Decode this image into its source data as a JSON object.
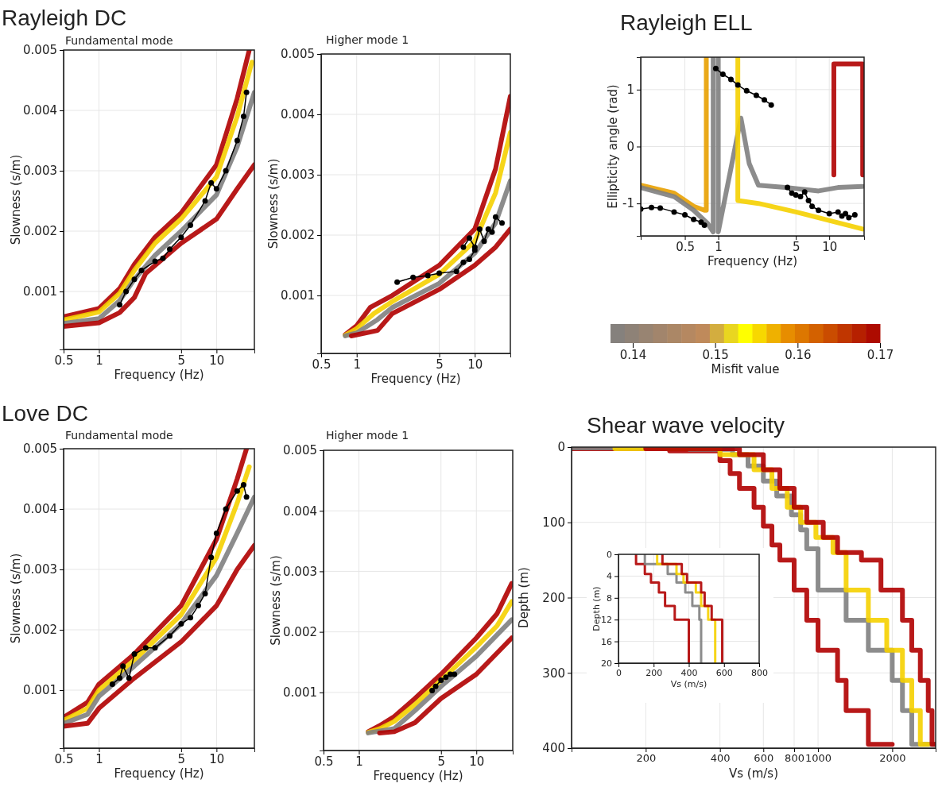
{
  "chart_data": [
    {
      "type": "line",
      "title": "Rayleigh DC",
      "subtitle": "Fundamental mode",
      "xlabel": "Frequency (Hz)",
      "ylabel": "Slowness (s/m)",
      "log": "x",
      "grid": true,
      "xlim": [
        0.5,
        21
      ],
      "ylim": [
        4e-05,
        0.005
      ],
      "xticks": [
        0.5,
        1,
        5,
        10
      ],
      "yticks": [
        0.001,
        0.002,
        0.003,
        0.004,
        0.005
      ],
      "series": [
        {
          "color": "#b00000",
          "marker": "none",
          "x": [
            0.5,
            1,
            1.5,
            2,
            3,
            5,
            10,
            15,
            19
          ],
          "values": [
            0.00058,
            0.00072,
            0.00105,
            0.00145,
            0.0019,
            0.0023,
            0.0031,
            0.0042,
            0.005
          ]
        },
        {
          "color": "#f5d000",
          "marker": "none",
          "x": [
            0.5,
            1,
            1.5,
            2,
            3,
            5,
            10,
            15,
            20
          ],
          "values": [
            0.00053,
            0.00066,
            0.00097,
            0.00135,
            0.0018,
            0.0022,
            0.0029,
            0.0039,
            0.0048
          ]
        },
        {
          "color": "#808080",
          "marker": "none",
          "x": [
            0.5,
            1,
            1.5,
            2,
            3,
            5,
            10,
            15,
            21
          ],
          "values": [
            0.00047,
            0.00055,
            0.00085,
            0.0012,
            0.0016,
            0.002,
            0.0026,
            0.0034,
            0.0043
          ]
        },
        {
          "color": "#b00000",
          "marker": "none",
          "x": [
            0.5,
            1,
            1.5,
            2,
            2.5,
            5,
            10,
            15,
            21
          ],
          "values": [
            0.00042,
            0.00048,
            0.00065,
            0.0009,
            0.0013,
            0.0018,
            0.0022,
            0.0027,
            0.0031
          ]
        },
        {
          "color": "#000000",
          "marker": "circle",
          "x": [
            1.5,
            1.7,
            2,
            2.3,
            3,
            3.5,
            4,
            5,
            6,
            8,
            9,
            10,
            12,
            15,
            17,
            18
          ],
          "values": [
            0.00078,
            0.001,
            0.0012,
            0.00135,
            0.0015,
            0.00155,
            0.0017,
            0.0019,
            0.0021,
            0.0025,
            0.0028,
            0.0027,
            0.003,
            0.0035,
            0.0039,
            0.0043
          ]
        }
      ]
    },
    {
      "type": "line",
      "subtitle": "Higher mode 1",
      "xlabel": "Frequency (Hz)",
      "ylabel": "Slowness (s/m)",
      "log": "x",
      "grid": true,
      "xlim": [
        0.5,
        20
      ],
      "ylim": [
        4e-05,
        0.005
      ],
      "xticks": [
        0.5,
        1,
        5,
        10
      ],
      "yticks": [
        0.001,
        0.002,
        0.003,
        0.004,
        0.005
      ],
      "series": [
        {
          "color": "#b00000",
          "marker": "none",
          "x": [
            0.8,
            1,
            1.3,
            2,
            5,
            10,
            15,
            20
          ],
          "values": [
            0.00035,
            0.0005,
            0.0008,
            0.001,
            0.0015,
            0.0021,
            0.0031,
            0.0043
          ]
        },
        {
          "color": "#f5d000",
          "marker": "none",
          "x": [
            0.8,
            1,
            1.4,
            2,
            5,
            10,
            15,
            20
          ],
          "values": [
            0.00034,
            0.00045,
            0.0007,
            0.0009,
            0.00135,
            0.0019,
            0.0027,
            0.0037
          ]
        },
        {
          "color": "#808080",
          "marker": "none",
          "x": [
            0.8,
            1,
            1.5,
            2,
            5,
            10,
            15,
            20
          ],
          "values": [
            0.00033,
            0.00038,
            0.0006,
            0.0008,
            0.0012,
            0.0017,
            0.0022,
            0.0029
          ]
        },
        {
          "color": "#b00000",
          "marker": "none",
          "x": [
            0.9,
            1.5,
            2,
            5,
            10,
            15,
            20
          ],
          "values": [
            0.00033,
            0.00042,
            0.0007,
            0.0011,
            0.0015,
            0.0018,
            0.0021
          ]
        },
        {
          "color": "#000000",
          "marker": "circle",
          "x": [
            2.2,
            3,
            4,
            5,
            7,
            8,
            9,
            10
          ],
          "values": [
            0.00122,
            0.0013,
            0.00133,
            0.00137,
            0.0014,
            0.00155,
            0.0016,
            0.00175
          ]
        },
        {
          "color": "#000000",
          "marker": "circle",
          "x": [
            8,
            9,
            10,
            11,
            12,
            13,
            14,
            15,
            17
          ],
          "values": [
            0.0018,
            0.00195,
            0.0018,
            0.0021,
            0.0019,
            0.0021,
            0.00205,
            0.0023,
            0.0022
          ]
        }
      ]
    },
    {
      "type": "line",
      "title": "Rayleigh ELL",
      "xlabel": "Frequency (Hz)",
      "ylabel": "Ellipticity angle (rad)",
      "log": "x",
      "grid": true,
      "xlim": [
        0.2,
        20.6
      ],
      "ylim": [
        -1.57,
        1.57
      ],
      "xticks": [
        0.5,
        1,
        5,
        10
      ],
      "yticks": [
        -1,
        0,
        1
      ],
      "clabel": "Misfit value",
      "clim": [
        0.1373,
        0.17
      ],
      "cticks": [
        0.14,
        0.15,
        0.16,
        0.17
      ],
      "series": [
        {
          "color": "#b00000",
          "marker": "none",
          "x": [
            11,
            11,
            14,
            17,
            20,
            20
          ],
          "values": [
            -0.5,
            1.45,
            1.45,
            1.45,
            1.45,
            -0.5
          ]
        },
        {
          "color": "#e8a000",
          "marker": "none",
          "x": [
            0.2,
            0.4,
            0.6,
            0.75,
            0.78,
            0.78
          ],
          "values": [
            -0.68,
            -0.82,
            -1.05,
            -1.12,
            -1.12,
            1.57
          ]
        },
        {
          "color": "#808080",
          "marker": "none",
          "x": [
            0.2,
            0.4,
            0.6,
            0.8,
            0.9,
            0.9
          ],
          "values": [
            -0.72,
            -0.88,
            -1.12,
            -1.35,
            -1.5,
            1.57
          ]
        },
        {
          "color": "#808080",
          "marker": "none",
          "x": [
            1,
            1,
            1.6,
            1.9,
            2.3,
            4,
            8,
            12,
            20
          ],
          "values": [
            1.57,
            -1.5,
            0.5,
            -0.3,
            -0.68,
            -0.72,
            -0.78,
            -0.72,
            -0.7
          ]
        },
        {
          "color": "#f5d000",
          "marker": "none",
          "x": [
            1.5,
            1.5,
            2.3,
            5,
            10,
            20
          ],
          "values": [
            1.57,
            -0.95,
            -1.0,
            -1.15,
            -1.3,
            -1.45
          ]
        },
        {
          "color": "#000000",
          "marker": "circle",
          "x": [
            0.2,
            0.25,
            0.3,
            0.4,
            0.5,
            0.6,
            0.7,
            0.75
          ],
          "values": [
            -1.1,
            -1.07,
            -1.08,
            -1.15,
            -1.2,
            -1.28,
            -1.33,
            -1.38
          ]
        },
        {
          "color": "#000000",
          "marker": "circle",
          "x": [
            0.95,
            1.1,
            1.3,
            1.5,
            1.8,
            2.2,
            2.6,
            3
          ],
          "values": [
            1.37,
            1.27,
            1.18,
            1.08,
            0.98,
            0.9,
            0.82,
            0.73
          ]
        },
        {
          "color": "#000000",
          "marker": "circle",
          "x": [
            4.2,
            4.6,
            5,
            5.5,
            6,
            6.5,
            7,
            8,
            10,
            12,
            13,
            14,
            15,
            17
          ],
          "values": [
            -0.72,
            -0.82,
            -0.85,
            -0.88,
            -0.8,
            -0.95,
            -1.05,
            -1.12,
            -1.18,
            -1.15,
            -1.22,
            -1.18,
            -1.25,
            -1.2
          ]
        }
      ]
    },
    {
      "type": "line",
      "title": "Love DC",
      "subtitle": "Fundamental mode",
      "xlabel": "Frequency (Hz)",
      "ylabel": "Slowness (s/m)",
      "log": "x",
      "grid": true,
      "xlim": [
        0.5,
        21
      ],
      "ylim": [
        4e-05,
        0.005
      ],
      "xticks": [
        0.5,
        1,
        5,
        10
      ],
      "yticks": [
        0.001,
        0.002,
        0.003,
        0.004,
        0.005
      ],
      "series": [
        {
          "color": "#b00000",
          "marker": "none",
          "x": [
            0.5,
            0.8,
            1,
            2,
            5,
            10,
            15,
            18
          ],
          "values": [
            0.00055,
            0.0008,
            0.0011,
            0.0016,
            0.0024,
            0.0035,
            0.0045,
            0.005
          ]
        },
        {
          "color": "#f5d000",
          "marker": "none",
          "x": [
            0.5,
            0.8,
            1,
            2,
            5,
            10,
            15,
            19
          ],
          "values": [
            0.0005,
            0.0007,
            0.001,
            0.0015,
            0.00225,
            0.0032,
            0.0041,
            0.0047
          ]
        },
        {
          "color": "#808080",
          "marker": "none",
          "x": [
            0.5,
            0.8,
            1,
            2,
            5,
            10,
            15,
            21
          ],
          "values": [
            0.00045,
            0.0006,
            0.0009,
            0.0014,
            0.0021,
            0.0029,
            0.0036,
            0.0042
          ]
        },
        {
          "color": "#b00000",
          "marker": "none",
          "x": [
            0.5,
            0.8,
            1,
            2,
            5,
            10,
            15,
            21
          ],
          "values": [
            0.0004,
            0.00045,
            0.0007,
            0.0012,
            0.0018,
            0.0024,
            0.003,
            0.0034
          ]
        },
        {
          "color": "#000000",
          "marker": "circle",
          "x": [
            1.3,
            1.5,
            1.6,
            1.8,
            2,
            2.5,
            3,
            4,
            5,
            6,
            7,
            8,
            9,
            10,
            12,
            15,
            17,
            18
          ],
          "values": [
            0.0011,
            0.0012,
            0.0014,
            0.0012,
            0.0016,
            0.0017,
            0.0017,
            0.0019,
            0.0021,
            0.0022,
            0.0024,
            0.0026,
            0.0032,
            0.0036,
            0.004,
            0.0043,
            0.0044,
            0.0042
          ]
        }
      ]
    },
    {
      "type": "line",
      "subtitle": "Higher mode 1",
      "xlabel": "Frequency (Hz)",
      "ylabel": "Slowness (s/m)",
      "log": "x",
      "grid": true,
      "xlim": [
        0.5,
        20.4
      ],
      "ylim": [
        4e-05,
        0.005
      ],
      "xticks": [
        0.5,
        1,
        5,
        10
      ],
      "yticks": [
        0.001,
        0.002,
        0.003,
        0.004,
        0.005
      ],
      "series": [
        {
          "color": "#b00000",
          "marker": "none",
          "x": [
            1.2,
            1.5,
            2,
            3,
            5,
            10,
            15,
            20
          ],
          "values": [
            0.00035,
            0.00045,
            0.0006,
            0.0009,
            0.0013,
            0.0019,
            0.0023,
            0.0028
          ]
        },
        {
          "color": "#f5d000",
          "marker": "none",
          "x": [
            1.2,
            1.5,
            2,
            3,
            5,
            10,
            15,
            20
          ],
          "values": [
            0.00034,
            0.0004,
            0.00052,
            0.0008,
            0.0012,
            0.00175,
            0.0021,
            0.0025
          ]
        },
        {
          "color": "#808080",
          "marker": "none",
          "x": [
            1.2,
            2,
            3,
            5,
            10,
            20
          ],
          "values": [
            0.00033,
            0.0004,
            0.0007,
            0.0011,
            0.0016,
            0.0022
          ]
        },
        {
          "color": "#b00000",
          "marker": "none",
          "x": [
            1.5,
            2,
            3,
            5,
            10,
            20
          ],
          "values": [
            0.00033,
            0.00035,
            0.0005,
            0.0009,
            0.0013,
            0.0019
          ]
        },
        {
          "color": "#000000",
          "marker": "circle",
          "x": [
            4.2,
            4.5,
            5,
            5.5,
            6,
            6.5
          ],
          "values": [
            0.00103,
            0.0011,
            0.0012,
            0.00125,
            0.0013,
            0.0013
          ]
        }
      ]
    },
    {
      "type": "line",
      "title": "Shear wave velocity",
      "xlabel": "Vs (m/s)",
      "ylabel": "Depth (m)",
      "log": "x",
      "grid": true,
      "xlim": [
        100,
        3000
      ],
      "ylim": [
        400,
        0
      ],
      "xticks": [
        200,
        400,
        600,
        800,
        1000,
        2000
      ],
      "yticks": [
        0,
        100,
        200,
        300,
        400
      ],
      "series": [
        {
          "color": "#b00000",
          "marker": "none",
          "x": [
            100,
            100,
            250,
            250,
            400,
            400,
            440,
            440,
            480,
            480,
            550,
            550,
            600,
            600,
            650,
            650,
            700,
            700,
            800,
            800,
            900,
            900,
            1000,
            1000,
            1200,
            1200,
            1300,
            1300,
            1600,
            1600,
            2000
          ],
          "values": [
            0,
            2,
            2,
            5,
            5,
            18,
            18,
            35,
            35,
            55,
            55,
            80,
            80,
            105,
            105,
            130,
            130,
            150,
            150,
            190,
            190,
            230,
            230,
            270,
            270,
            310,
            310,
            350,
            350,
            395,
            395
          ]
        },
        {
          "color": "#808080",
          "marker": "none",
          "x": [
            100,
            100,
            300,
            300,
            450,
            450,
            520,
            520,
            600,
            600,
            680,
            680,
            780,
            780,
            850,
            850,
            900,
            900,
            1000,
            1000,
            1300,
            1300,
            1600,
            1600,
            2000,
            2000,
            2200,
            2200,
            2400,
            2400,
            3000
          ],
          "values": [
            0,
            1,
            1,
            3,
            3,
            10,
            10,
            25,
            25,
            45,
            45,
            65,
            65,
            90,
            90,
            110,
            110,
            135,
            135,
            190,
            190,
            230,
            230,
            270,
            270,
            310,
            310,
            350,
            350,
            395,
            395
          ]
        },
        {
          "color": "#f5d000",
          "marker": "none",
          "x": [
            150,
            150,
            400,
            400,
            550,
            550,
            650,
            650,
            750,
            750,
            850,
            850,
            980,
            980,
            1150,
            1150,
            1300,
            1300,
            1600,
            1600,
            1900,
            1900,
            2200,
            2200,
            2400,
            2400,
            2600,
            2600,
            2800
          ],
          "values": [
            0,
            2,
            2,
            10,
            10,
            30,
            30,
            55,
            55,
            80,
            80,
            100,
            100,
            120,
            120,
            140,
            140,
            190,
            190,
            230,
            230,
            270,
            270,
            310,
            310,
            350,
            350,
            395,
            395
          ]
        },
        {
          "color": "#b00000",
          "marker": "none",
          "x": [
            200,
            200,
            480,
            480,
            600,
            600,
            700,
            700,
            800,
            800,
            900,
            900,
            1050,
            1050,
            1200,
            1200,
            1500,
            1500,
            1800,
            1800,
            2200,
            2200,
            2400,
            2400,
            2600,
            2600,
            2800,
            2800,
            2900,
            2900,
            3000
          ],
          "values": [
            0,
            2,
            2,
            10,
            10,
            30,
            30,
            55,
            55,
            80,
            80,
            100,
            100,
            120,
            120,
            140,
            140,
            150,
            150,
            190,
            190,
            230,
            230,
            270,
            270,
            310,
            310,
            350,
            350,
            395,
            395
          ]
        }
      ]
    },
    {
      "type": "line",
      "xlabel": "Vs (m/s)",
      "ylabel": "Depth (m)",
      "grid": true,
      "xlim": [
        0,
        800
      ],
      "ylim": [
        20,
        0
      ],
      "xticks": [
        0,
        200,
        400,
        600,
        800
      ],
      "yticks": [
        0,
        4,
        8,
        12,
        16,
        20
      ],
      "series": [
        {
          "color": "#b00000",
          "marker": "none",
          "x": [
            100,
            100,
            150,
            150,
            185,
            185,
            230,
            230,
            265,
            265,
            320,
            320,
            400,
            400
          ],
          "values": [
            0,
            1.8,
            1.8,
            3.6,
            3.6,
            5.2,
            5.2,
            7,
            7,
            9.5,
            9.5,
            12,
            12,
            20
          ]
        },
        {
          "color": "#808080",
          "marker": "none",
          "x": [
            150,
            150,
            280,
            280,
            330,
            330,
            380,
            380,
            420,
            420,
            460,
            460,
            470,
            470
          ],
          "values": [
            0,
            1.8,
            1.8,
            3.6,
            3.6,
            5.2,
            5.2,
            7,
            7,
            9.5,
            9.5,
            12,
            12,
            20
          ]
        },
        {
          "color": "#f5d000",
          "marker": "none",
          "x": [
            220,
            220,
            330,
            330,
            370,
            370,
            440,
            440,
            470,
            470,
            510,
            510,
            550,
            550
          ],
          "values": [
            0,
            1.8,
            1.8,
            3.6,
            3.6,
            5.2,
            5.2,
            7,
            7,
            9.5,
            9.5,
            12,
            12,
            20
          ]
        },
        {
          "color": "#b00000",
          "marker": "none",
          "x": [
            250,
            250,
            360,
            360,
            390,
            390,
            470,
            470,
            490,
            490,
            530,
            530,
            590,
            590
          ],
          "values": [
            0,
            1.8,
            1.8,
            3.6,
            3.6,
            5.2,
            5.2,
            7,
            7,
            9.5,
            9.5,
            12,
            12,
            20
          ]
        }
      ]
    }
  ]
}
